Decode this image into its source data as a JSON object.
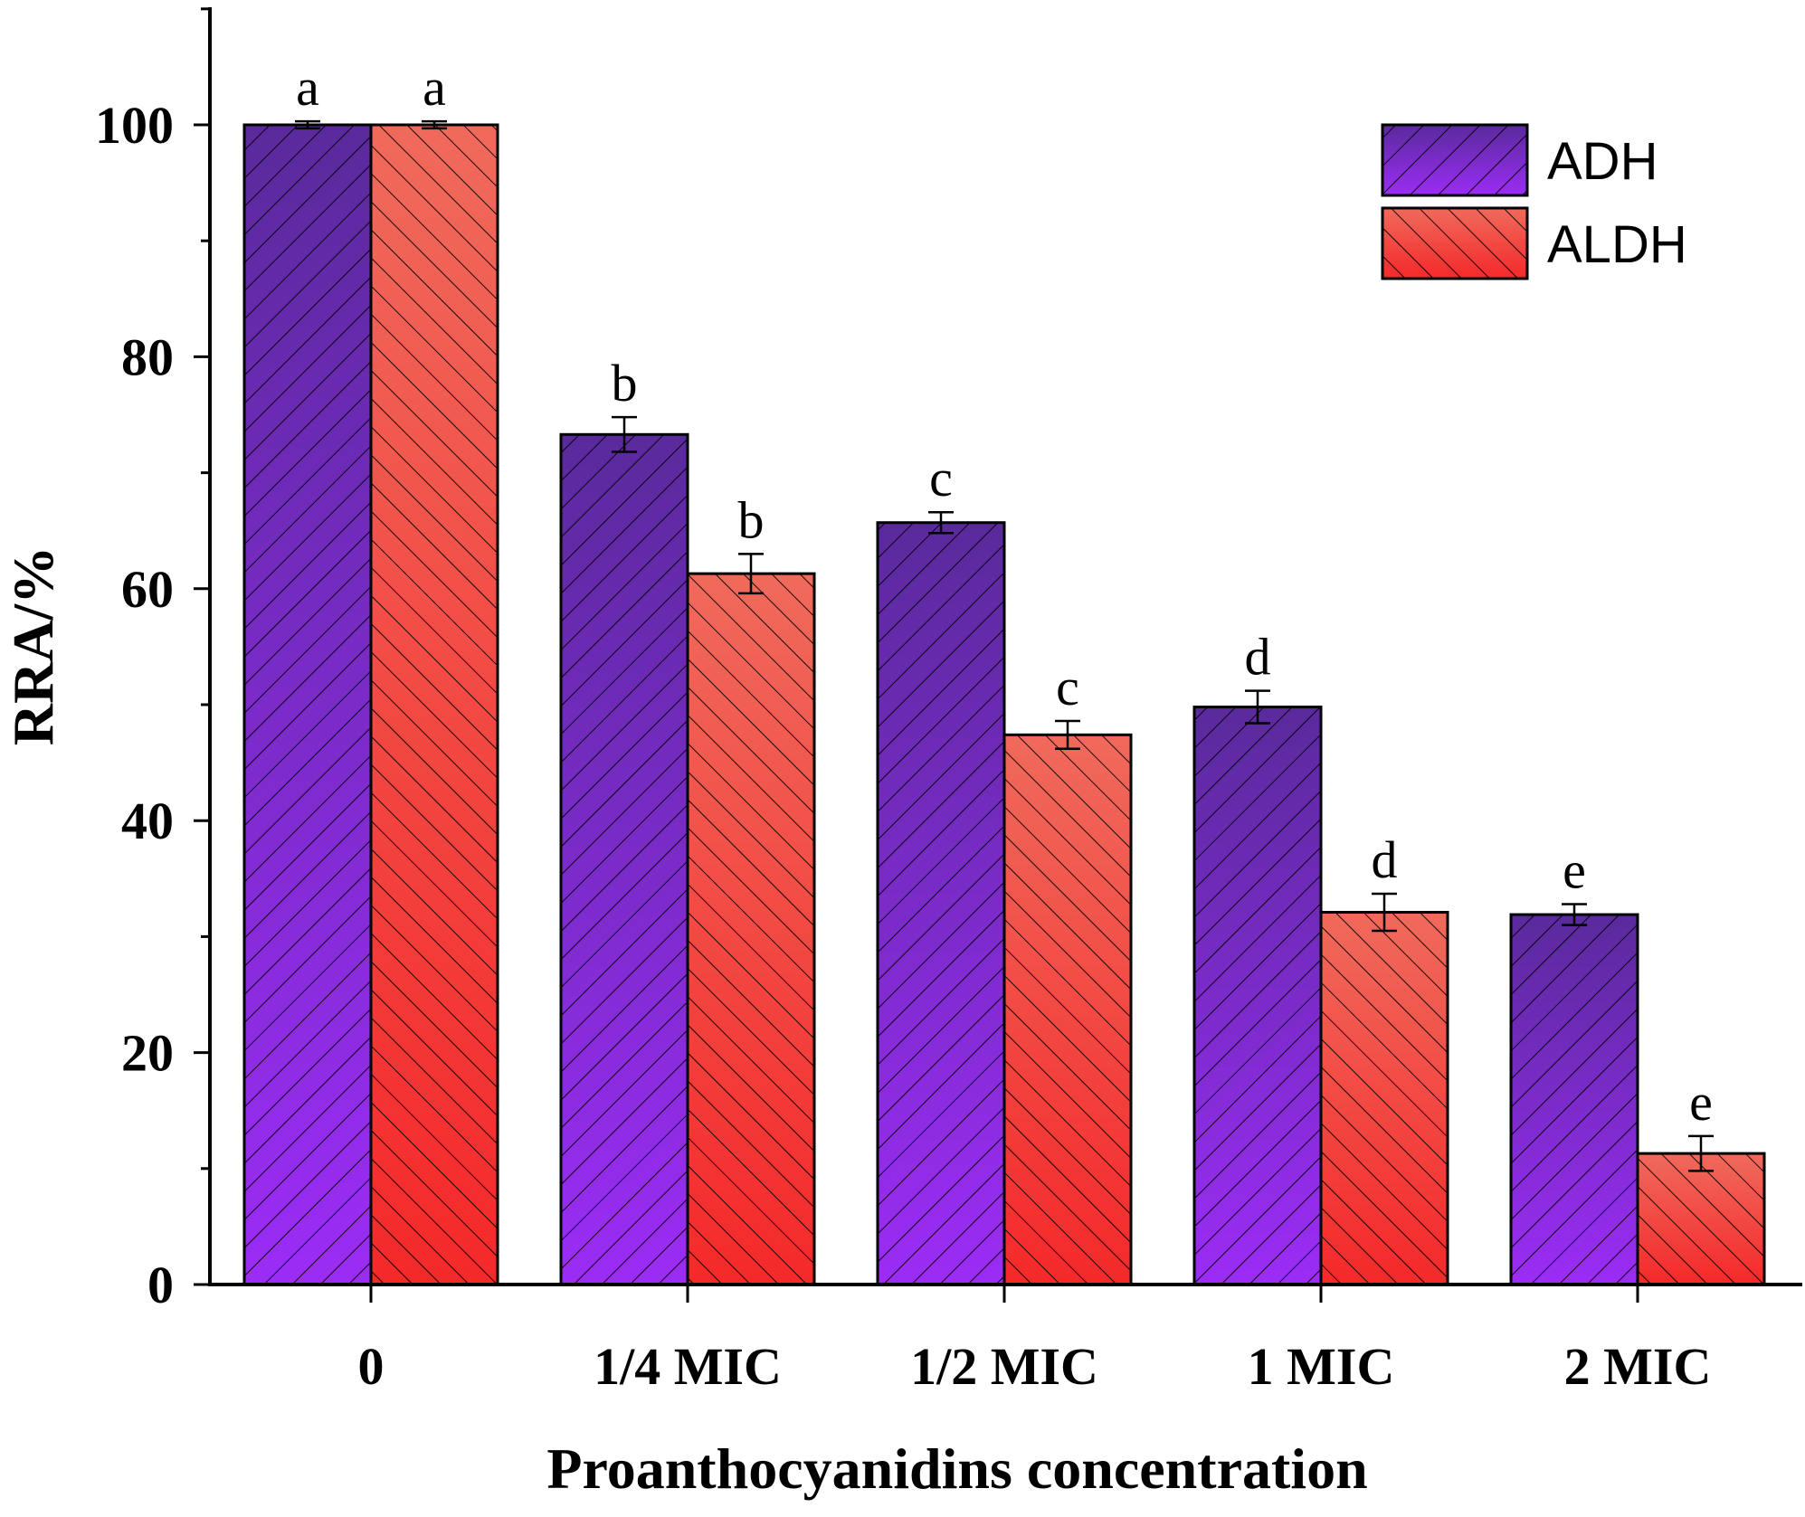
{
  "colors": {
    "adh_top": "#5a2a9c",
    "adh_bottom": "#9b2cf5",
    "aldh_top": "#f06a5c",
    "aldh_bottom": "#f4292a",
    "hatch": "#000000",
    "axis": "#000000"
  },
  "chart_data": {
    "type": "bar",
    "title": "",
    "xlabel": "Proanthocyanidins concentration",
    "ylabel": "RRA/%",
    "ylim": [
      0,
      110
    ],
    "yticks": [
      "0",
      "20",
      "40",
      "60",
      "80",
      "100"
    ],
    "categories": [
      "0",
      "1/4 MIC",
      "1/2 MIC",
      "1 MIC",
      "2 MIC"
    ],
    "legend_position": "top-right",
    "series": [
      {
        "name": "ADH",
        "values": [
          100,
          73.3,
          65.7,
          49.8,
          31.9
        ],
        "errors": [
          0.3,
          1.5,
          0.9,
          1.4,
          0.9
        ],
        "labels": [
          "a",
          "b",
          "c",
          "d",
          "e"
        ]
      },
      {
        "name": "ALDH",
        "values": [
          100,
          61.3,
          47.4,
          32.1,
          11.3
        ],
        "errors": [
          0.3,
          1.7,
          1.2,
          1.6,
          1.5
        ],
        "labels": [
          "a",
          "b",
          "c",
          "d",
          "e"
        ]
      }
    ]
  }
}
